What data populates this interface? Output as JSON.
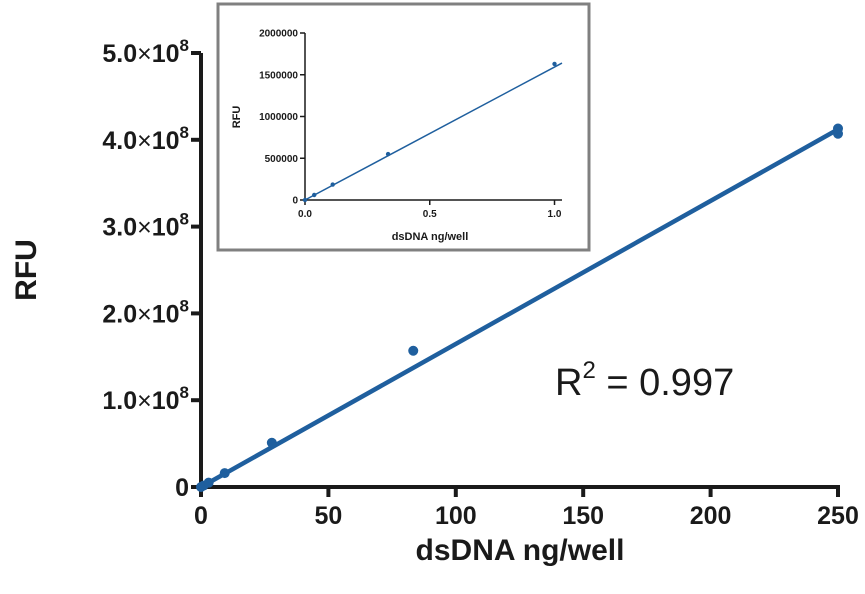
{
  "chart_data": [
    {
      "type": "scatter",
      "xlabel": "dsDNA ng/well",
      "ylabel": "RFU",
      "xlim": [
        0,
        250
      ],
      "ylim": [
        0,
        500000000
      ],
      "xticks": [
        0,
        50,
        100,
        150,
        200,
        250
      ],
      "xtick_labels": [
        "0",
        "50",
        "100",
        "150",
        "200",
        "250"
      ],
      "yticks": [
        0,
        100000000,
        200000000,
        300000000,
        400000000,
        500000000
      ],
      "ytick_labels": [
        {
          "mantissa": "0",
          "times": "",
          "base": "",
          "exp": ""
        },
        {
          "mantissa": "1.0",
          "times": "×",
          "base": "10",
          "exp": "8"
        },
        {
          "mantissa": "2.0",
          "times": "×",
          "base": "10",
          "exp": "8"
        },
        {
          "mantissa": "3.0",
          "times": "×",
          "base": "10",
          "exp": "8"
        },
        {
          "mantissa": "4.0",
          "times": "×",
          "base": "10",
          "exp": "8"
        },
        {
          "mantissa": "5.0",
          "times": "×",
          "base": "10",
          "exp": "8"
        }
      ],
      "series": [
        {
          "points": [
            {
              "x": 0,
              "y": 0
            },
            {
              "x": 1,
              "y": 1600000
            },
            {
              "x": 3,
              "y": 5000000
            },
            {
              "x": 9.3,
              "y": 16000000
            },
            {
              "x": 27.8,
              "y": 51000000
            },
            {
              "x": 83.3,
              "y": 157000000
            },
            {
              "x": 250,
              "y": 407000000
            },
            {
              "x": 250,
              "y": 413000000
            }
          ]
        }
      ],
      "fit_line": {
        "x": [
          0,
          250
        ],
        "y": [
          0,
          412000000
        ]
      },
      "annotation": {
        "base": "R",
        "sup": "2",
        "rest": " = 0.997"
      },
      "color": "#1f5f9e",
      "grid": false
    },
    {
      "type": "scatter",
      "inset": true,
      "xlabel": "dsDNA ng/well",
      "ylabel": "RFU",
      "xlim": [
        0,
        1.03
      ],
      "ylim": [
        0,
        2000000
      ],
      "xticks": [
        0,
        0.5,
        1
      ],
      "xtick_labels": [
        "0.0",
        "0.5",
        "1.0"
      ],
      "yticks": [
        0,
        500000,
        1000000,
        1500000,
        2000000
      ],
      "ytick_labels": [
        "0",
        "500000",
        "1000000",
        "1500000",
        "2000000"
      ],
      "series": [
        {
          "points": [
            {
              "x": 0,
              "y": 0
            },
            {
              "x": 0.037,
              "y": 60000
            },
            {
              "x": 0.111,
              "y": 185000
            },
            {
              "x": 0.333,
              "y": 550000
            },
            {
              "x": 1.0,
              "y": 1630000
            }
          ]
        }
      ],
      "fit_line": {
        "x": [
          0,
          1.03
        ],
        "y": [
          0,
          1640000
        ]
      },
      "color": "#1f5f9e",
      "grid": false
    }
  ]
}
